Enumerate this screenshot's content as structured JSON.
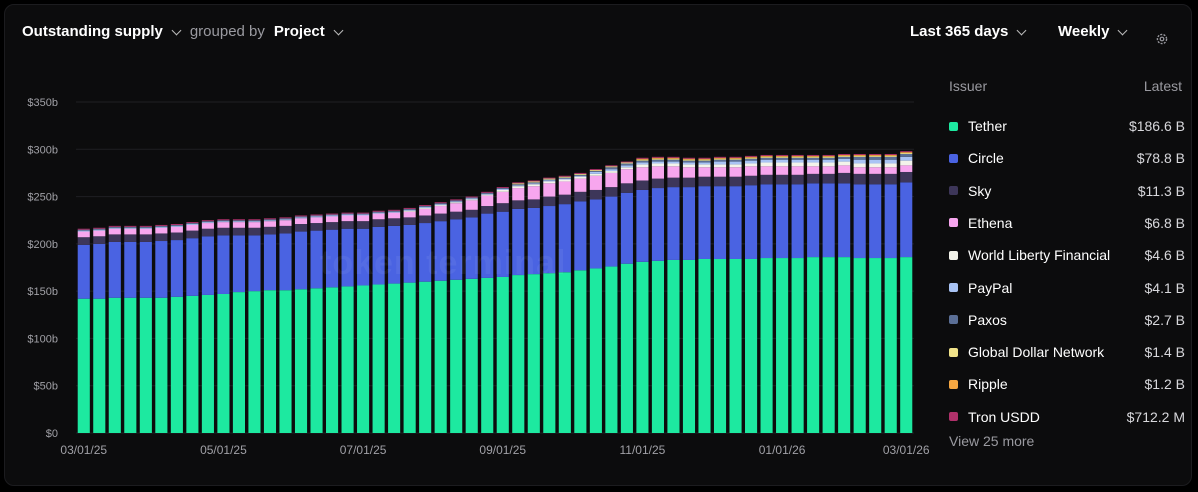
{
  "header": {
    "metric": "Outstanding supply",
    "grouped_by_label": "grouped by",
    "group": "Project",
    "range": "Last 365 days",
    "interval": "Weekly"
  },
  "watermark": "token terminal",
  "legend": {
    "issuer_header": "Issuer",
    "latest_header": "Latest",
    "view_more": "View 25 more",
    "items": [
      {
        "name": "Tether",
        "value": "$186.6 B",
        "color": "#1de9a0"
      },
      {
        "name": "Circle",
        "value": "$78.8 B",
        "color": "#4a63e2"
      },
      {
        "name": "Sky",
        "value": "$11.3 B",
        "color": "#3d3659"
      },
      {
        "name": "Ethena",
        "value": "$6.8 B",
        "color": "#f7a6ee"
      },
      {
        "name": "World Liberty Financial",
        "value": "$4.6 B",
        "color": "#f3f3ea"
      },
      {
        "name": "PayPal",
        "value": "$4.1 B",
        "color": "#a9c3f4"
      },
      {
        "name": "Paxos",
        "value": "$2.7 B",
        "color": "#5b6f96"
      },
      {
        "name": "Global Dollar Network",
        "value": "$1.4 B",
        "color": "#f1e38a"
      },
      {
        "name": "Ripple",
        "value": "$1.2 B",
        "color": "#f5a742"
      },
      {
        "name": "Tron USDD",
        "value": "$712.2 M",
        "color": "#b0316a"
      }
    ]
  },
  "chart_data": {
    "type": "bar",
    "stacked": true,
    "ylim": [
      0,
      350
    ],
    "y_ticks": [
      "$0",
      "$50b",
      "$100b",
      "$150b",
      "$200b",
      "$250b",
      "$300b",
      "$350b"
    ],
    "x_tick_labels": [
      {
        "label": "03/01/25",
        "index": 0
      },
      {
        "label": "05/01/25",
        "index": 9
      },
      {
        "label": "07/01/25",
        "index": 18
      },
      {
        "label": "09/01/25",
        "index": 27
      },
      {
        "label": "11/01/25",
        "index": 36
      },
      {
        "label": "01/01/26",
        "index": 45
      },
      {
        "label": "03/01/26",
        "index": 53
      }
    ],
    "series": [
      {
        "name": "Tether",
        "color": "#1de9a0",
        "values": [
          142,
          142,
          143,
          143,
          143,
          143,
          144,
          145,
          146,
          147,
          149,
          150,
          151,
          151,
          152,
          153,
          154,
          155,
          156,
          157,
          158,
          159,
          160,
          161,
          162,
          163,
          164,
          165,
          167,
          168,
          169,
          170,
          172,
          174,
          176,
          179,
          181,
          182,
          183,
          183,
          184,
          184,
          184,
          184,
          185,
          185,
          185,
          186,
          186,
          186,
          185,
          185,
          185,
          186
        ]
      },
      {
        "name": "Circle",
        "color": "#4a63e2",
        "values": [
          57,
          58,
          59,
          59,
          59,
          60,
          60,
          61,
          62,
          62,
          60,
          59,
          59,
          60,
          61,
          61,
          61,
          61,
          60,
          61,
          61,
          61,
          62,
          63,
          64,
          65,
          68,
          69,
          70,
          70,
          71,
          72,
          73,
          73,
          74,
          75,
          76,
          77,
          77,
          77,
          77,
          77,
          77,
          78,
          78,
          78,
          78,
          78,
          78,
          78,
          78,
          78,
          78,
          79
        ]
      },
      {
        "name": "Sky",
        "color": "#3d3659",
        "values": [
          8,
          8,
          8,
          8,
          8,
          8,
          8,
          8,
          8,
          8,
          8,
          8,
          8,
          8,
          8,
          8,
          8,
          8,
          8,
          8,
          8,
          8,
          8,
          8,
          8,
          8,
          8,
          9,
          9,
          9,
          10,
          10,
          10,
          10,
          10,
          10,
          10,
          10,
          10,
          10,
          10,
          10,
          10,
          10,
          10,
          10,
          10,
          10,
          10,
          11,
          11,
          11,
          11,
          11
        ]
      },
      {
        "name": "Ethena",
        "color": "#f7a6ee",
        "values": [
          6,
          6,
          6,
          6,
          6,
          6,
          6,
          6,
          6,
          6,
          6,
          6,
          6,
          6,
          6,
          6,
          6,
          6,
          6,
          6,
          6,
          6,
          7,
          8,
          9,
          10,
          11,
          12,
          13,
          14,
          14,
          14,
          14,
          15,
          15,
          15,
          14,
          13,
          12,
          11,
          10,
          10,
          10,
          10,
          9,
          9,
          9,
          8,
          8,
          8,
          7,
          7,
          7,
          7
        ]
      },
      {
        "name": "World Liberty Financial",
        "color": "#f3f3ea",
        "values": [
          0,
          0,
          0,
          0,
          0,
          0,
          0,
          0,
          0,
          0,
          0,
          0,
          0,
          0,
          0,
          0,
          0,
          0,
          0,
          0,
          0,
          1,
          1,
          1,
          1,
          1,
          1,
          2,
          2,
          2,
          2,
          2,
          2,
          2,
          2,
          2,
          3,
          3,
          3,
          3,
          3,
          3,
          3,
          3,
          4,
          4,
          4,
          4,
          4,
          4,
          4,
          4,
          4,
          5
        ]
      },
      {
        "name": "PayPal",
        "color": "#a9c3f4",
        "values": [
          1,
          1,
          1,
          1,
          1,
          1,
          1,
          1,
          1,
          1,
          1,
          1,
          1,
          1,
          1,
          1,
          1,
          1,
          1,
          1,
          1,
          1,
          1,
          1,
          1,
          1,
          1,
          1,
          1,
          1,
          1,
          1,
          1,
          2,
          2,
          2,
          2,
          2,
          2,
          2,
          2,
          3,
          3,
          3,
          3,
          3,
          3,
          3,
          3,
          3,
          4,
          4,
          4,
          4
        ]
      },
      {
        "name": "Paxos",
        "color": "#5b6f96",
        "values": [
          1,
          1,
          1,
          1,
          1,
          1,
          1,
          1,
          1,
          1,
          1,
          1,
          1,
          1,
          1,
          1,
          1,
          1,
          1,
          1,
          1,
          1,
          1,
          1,
          1,
          1,
          1,
          1,
          1,
          1,
          1,
          1,
          1,
          1,
          2,
          2,
          2,
          2,
          2,
          2,
          2,
          2,
          2,
          2,
          2,
          2,
          2,
          2,
          2,
          2,
          3,
          3,
          3,
          3
        ]
      },
      {
        "name": "Global Dollar Network",
        "color": "#f1e38a",
        "values": [
          0,
          0,
          0,
          0,
          0,
          0,
          0,
          0,
          0,
          0,
          0,
          0,
          0,
          0,
          0,
          0,
          0,
          0,
          0,
          0,
          0,
          0,
          0,
          0,
          0,
          0,
          0,
          0,
          1,
          1,
          1,
          1,
          1,
          1,
          1,
          1,
          1,
          1,
          1,
          1,
          1,
          1,
          1,
          1,
          1,
          1,
          1,
          1,
          1,
          1,
          1,
          1,
          1,
          1
        ]
      },
      {
        "name": "Ripple",
        "color": "#f5a742",
        "values": [
          0,
          0,
          0,
          0,
          0,
          0,
          0,
          0,
          0,
          0,
          0,
          0,
          0,
          0,
          0,
          0,
          0,
          0,
          0,
          0,
          0,
          0,
          0,
          0,
          0,
          0,
          0,
          0,
          0,
          0,
          0,
          0,
          0,
          0,
          0,
          0,
          1,
          1,
          1,
          1,
          1,
          1,
          1,
          1,
          1,
          1,
          1,
          1,
          1,
          1,
          1,
          1,
          1,
          1
        ]
      },
      {
        "name": "Tron USDD",
        "color": "#b0316a",
        "values": [
          1,
          1,
          1,
          1,
          1,
          1,
          1,
          1,
          1,
          1,
          1,
          1,
          1,
          1,
          1,
          1,
          1,
          1,
          1,
          1,
          1,
          1,
          1,
          1,
          1,
          1,
          1,
          1,
          1,
          1,
          1,
          1,
          1,
          1,
          1,
          1,
          1,
          1,
          1,
          1,
          1,
          1,
          1,
          1,
          1,
          1,
          1,
          1,
          1,
          1,
          1,
          1,
          1,
          1
        ]
      }
    ]
  }
}
